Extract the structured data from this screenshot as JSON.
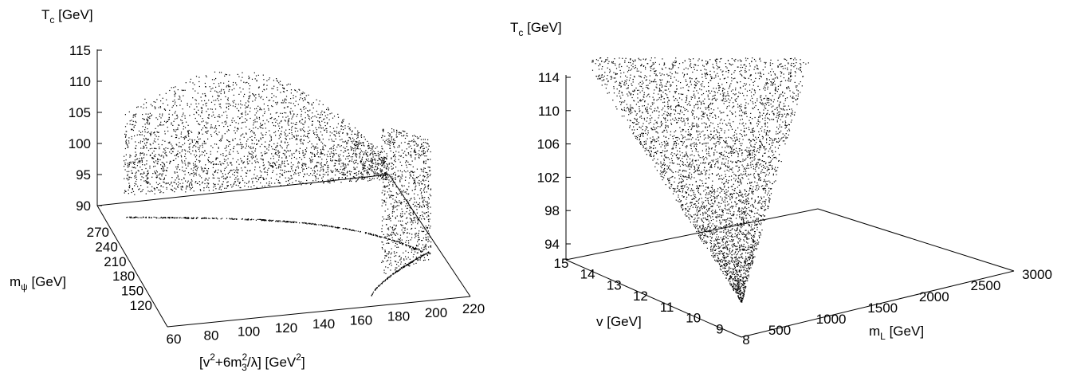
{
  "chart_data": [
    {
      "type": "scatter",
      "title": "",
      "zlabel": {
        "main": "T",
        "sub": "c",
        "unit": " [GeV]"
      },
      "ylabel": {
        "main": "m",
        "sub": "ψ",
        "unit": " [GeV]"
      },
      "xlabel": {
        "pre": "[v",
        "sup1": "2",
        "mid": "+6m",
        "sup2": "2",
        "sub2": "3",
        "post": "/λ] [GeV",
        "sup3": "2",
        "end": "]"
      },
      "x_ticks": [
        "60",
        "80",
        "100",
        "120",
        "140",
        "160",
        "180",
        "200",
        "220"
      ],
      "y_ticks": [
        "120",
        "150",
        "180",
        "210",
        "240",
        "270"
      ],
      "z_ticks": [
        "90",
        "95",
        "100",
        "105",
        "110",
        "115"
      ],
      "xlim": [
        60,
        220
      ],
      "ylim": [
        120,
        270
      ],
      "zlim": [
        90,
        115
      ],
      "grid": false,
      "color": "#000000"
    },
    {
      "type": "scatter",
      "title": "",
      "zlabel": {
        "main": "T",
        "sub": "c",
        "unit": " [GeV]"
      },
      "ylabel": {
        "main": "v",
        "unit": " [GeV]"
      },
      "xlabel": {
        "main": "m",
        "sub": "L",
        "unit": " [GeV]"
      },
      "x_ticks": [
        "500",
        "1000",
        "1500",
        "2000",
        "2500",
        "3000"
      ],
      "y_ticks": [
        "15",
        "14",
        "13",
        "12",
        "11",
        "10",
        "9",
        "8"
      ],
      "z_ticks": [
        "94",
        "98",
        "102",
        "106",
        "110",
        "114"
      ],
      "xlim": [
        500,
        3000
      ],
      "ylim": [
        8,
        15
      ],
      "zlim": [
        92,
        115
      ],
      "grid": false,
      "color": "#000000"
    }
  ]
}
